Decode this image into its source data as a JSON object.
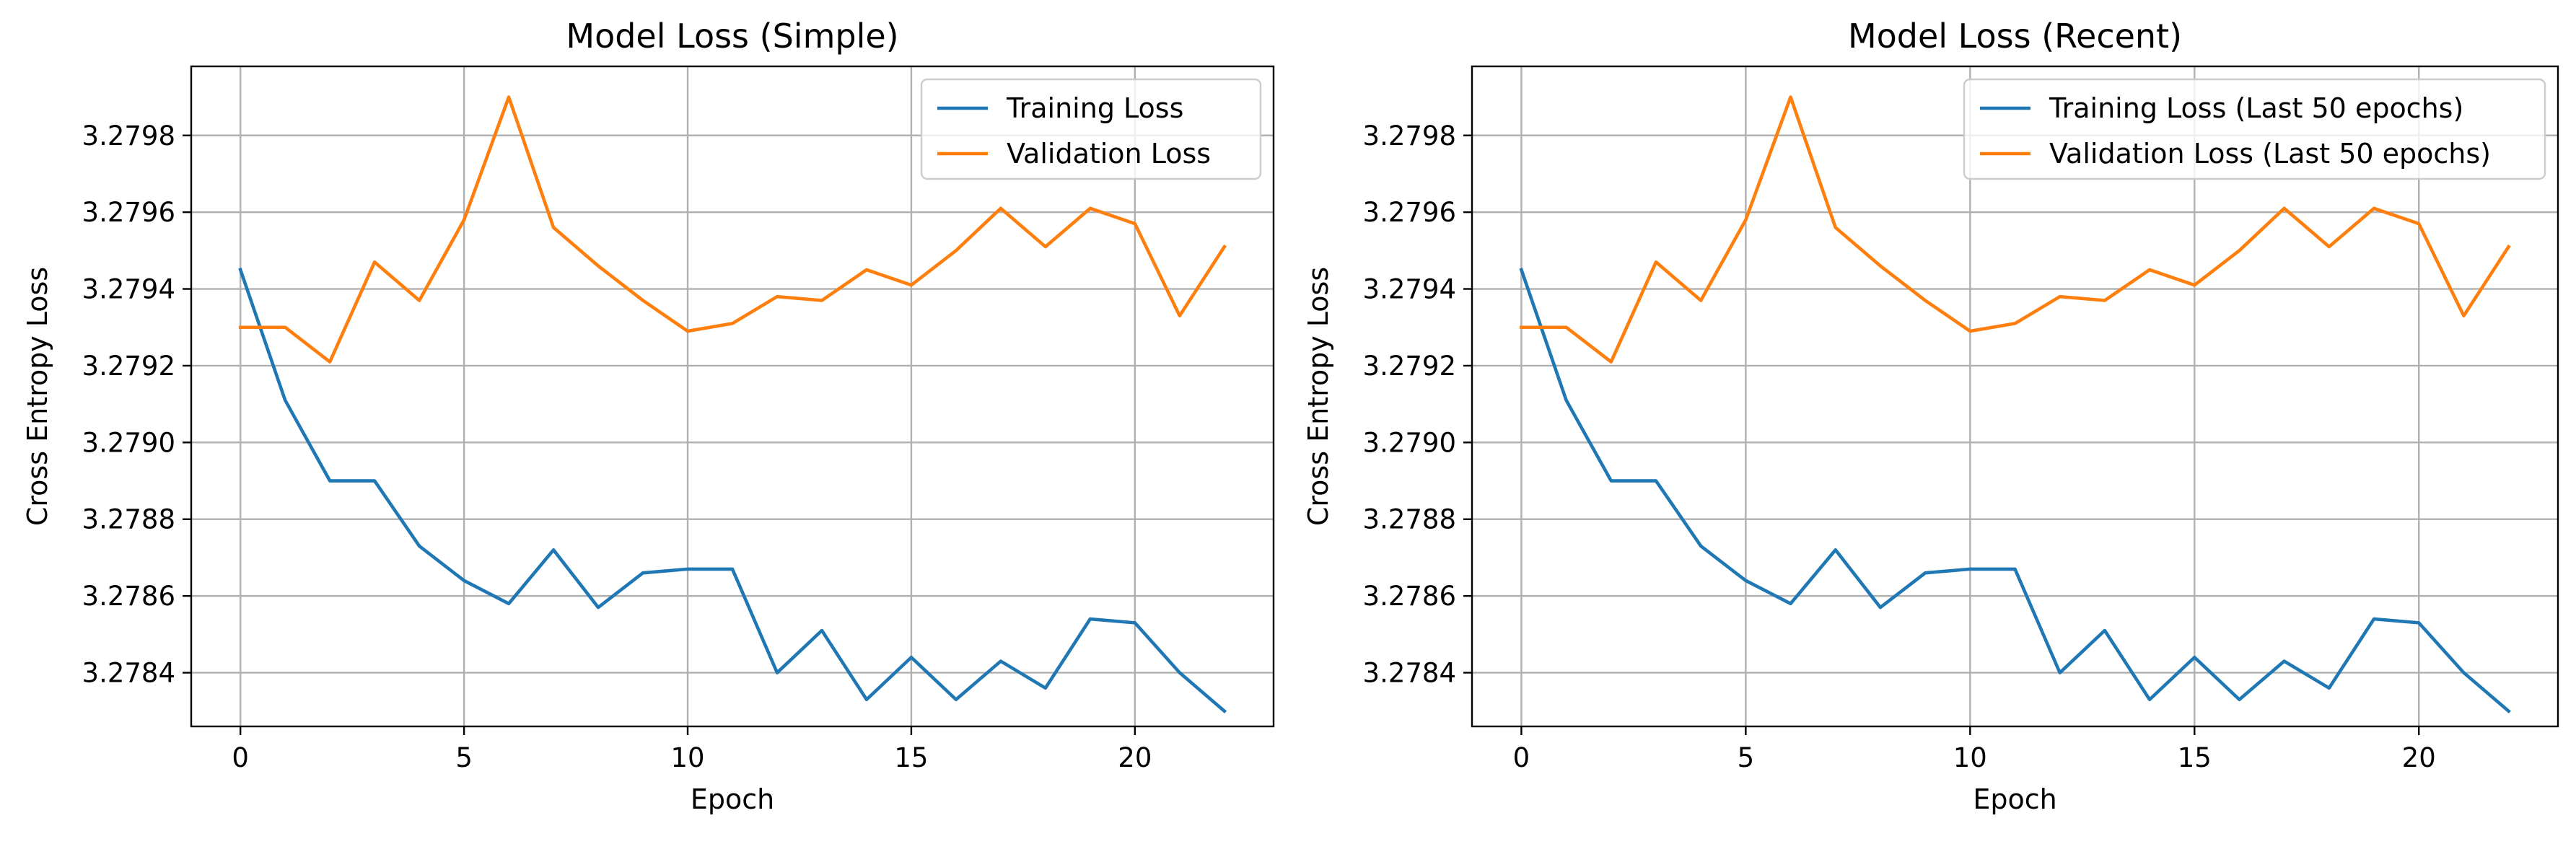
{
  "chart_data": [
    {
      "type": "line",
      "title": "Model Loss (Simple)",
      "xlabel": "Epoch",
      "ylabel": "Cross Entropy Loss",
      "xlim": [
        -1.1,
        23.1
      ],
      "ylim": [
        3.27826,
        3.27998
      ],
      "xticks": [
        0,
        5,
        10,
        15,
        20
      ],
      "yticks": [
        3.2784,
        3.2786,
        3.2788,
        3.279,
        3.2792,
        3.2794,
        3.2796,
        3.2798
      ],
      "ytick_labels": [
        "3.2784",
        "3.2786",
        "3.2788",
        "3.2790",
        "3.2792",
        "3.2794",
        "3.2796",
        "3.2798"
      ],
      "grid": true,
      "legend_position": "upper-right",
      "x": [
        0,
        1,
        2,
        3,
        4,
        5,
        6,
        7,
        8,
        9,
        10,
        11,
        12,
        13,
        14,
        15,
        16,
        17,
        18,
        19,
        20,
        21,
        22
      ],
      "series": [
        {
          "name": "Training Loss",
          "color": "#1f77b4",
          "values": [
            3.27945,
            3.27911,
            3.2789,
            3.2789,
            3.27873,
            3.27864,
            3.27858,
            3.27872,
            3.27857,
            3.27866,
            3.27867,
            3.27867,
            3.2784,
            3.27851,
            3.27833,
            3.27844,
            3.27833,
            3.27843,
            3.27836,
            3.27854,
            3.27853,
            3.2784,
            3.2783
          ]
        },
        {
          "name": "Validation Loss",
          "color": "#ff7f0e",
          "values": [
            3.2793,
            3.2793,
            3.27921,
            3.27947,
            3.27937,
            3.27958,
            3.2799,
            3.27956,
            3.27946,
            3.27937,
            3.27929,
            3.27931,
            3.27938,
            3.27937,
            3.27945,
            3.27941,
            3.2795,
            3.27961,
            3.27951,
            3.27961,
            3.27957,
            3.27933,
            3.27951
          ]
        }
      ]
    },
    {
      "type": "line",
      "title": "Model Loss (Recent)",
      "xlabel": "Epoch",
      "ylabel": "Cross Entropy Loss",
      "xlim": [
        -1.1,
        23.1
      ],
      "ylim": [
        3.27826,
        3.27998
      ],
      "xticks": [
        0,
        5,
        10,
        15,
        20
      ],
      "yticks": [
        3.2784,
        3.2786,
        3.2788,
        3.279,
        3.2792,
        3.2794,
        3.2796,
        3.2798
      ],
      "ytick_labels": [
        "3.2784",
        "3.2786",
        "3.2788",
        "3.2790",
        "3.2792",
        "3.2794",
        "3.2796",
        "3.2798"
      ],
      "grid": true,
      "legend_position": "upper-right",
      "x": [
        0,
        1,
        2,
        3,
        4,
        5,
        6,
        7,
        8,
        9,
        10,
        11,
        12,
        13,
        14,
        15,
        16,
        17,
        18,
        19,
        20,
        21,
        22
      ],
      "series": [
        {
          "name": "Training Loss (Last 50 epochs)",
          "color": "#1f77b4",
          "values": [
            3.27945,
            3.27911,
            3.2789,
            3.2789,
            3.27873,
            3.27864,
            3.27858,
            3.27872,
            3.27857,
            3.27866,
            3.27867,
            3.27867,
            3.2784,
            3.27851,
            3.27833,
            3.27844,
            3.27833,
            3.27843,
            3.27836,
            3.27854,
            3.27853,
            3.2784,
            3.2783
          ]
        },
        {
          "name": "Validation Loss (Last 50 epochs)",
          "color": "#ff7f0e",
          "values": [
            3.2793,
            3.2793,
            3.27921,
            3.27947,
            3.27937,
            3.27958,
            3.2799,
            3.27956,
            3.27946,
            3.27937,
            3.27929,
            3.27931,
            3.27938,
            3.27937,
            3.27945,
            3.27941,
            3.2795,
            3.27961,
            3.27951,
            3.27961,
            3.27957,
            3.27933,
            3.27951
          ]
        }
      ]
    }
  ]
}
